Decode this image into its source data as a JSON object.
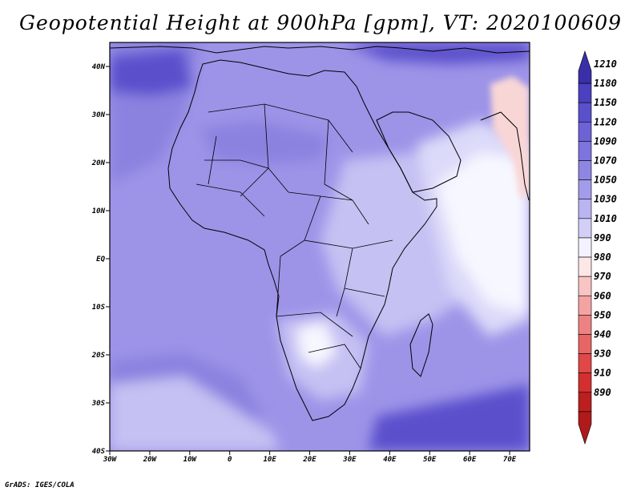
{
  "title": "Geopotential Height at 900hPa [gpm], VT: 2020100609",
  "credit": "GrADS: IGES/COLA",
  "map": {
    "lat_labels": [
      "40N",
      "30N",
      "20N",
      "10N",
      "EQ",
      "10S",
      "20S",
      "30S",
      "40S"
    ],
    "lon_labels": [
      "30W",
      "20W",
      "10W",
      "0",
      "10E",
      "20E",
      "30E",
      "40E",
      "50E",
      "60E",
      "70E"
    ],
    "lon_range": [
      -30,
      75
    ],
    "lat_range": [
      -40,
      45
    ]
  },
  "colorbar": {
    "levels": [
      "1210",
      "1180",
      "1150",
      "1120",
      "1090",
      "1070",
      "1050",
      "1030",
      "1010",
      "990",
      "980",
      "970",
      "960",
      "950",
      "940",
      "930",
      "910",
      "890"
    ],
    "colors": [
      "#3a2fa8",
      "#4a40c0",
      "#5a50cc",
      "#6d62d6",
      "#7e74dd",
      "#8f86e3",
      "#a39cea",
      "#bab5f1",
      "#d2cff7",
      "#f3f2fe",
      "#fde6e6",
      "#f9c4c4",
      "#f4a3a3",
      "#ee8282",
      "#e86565",
      "#e04747",
      "#d42e2e",
      "#bb1f1f",
      "#b11a1a"
    ]
  },
  "fields": {
    "background": "#9d94e8",
    "ocean_shade": "#8b82e0",
    "deep": "#5b4fcc",
    "light": "#c5c1f3",
    "pale": "#dcdaf9",
    "white": "#f7f7ff",
    "pink": "#f9d6d6"
  }
}
